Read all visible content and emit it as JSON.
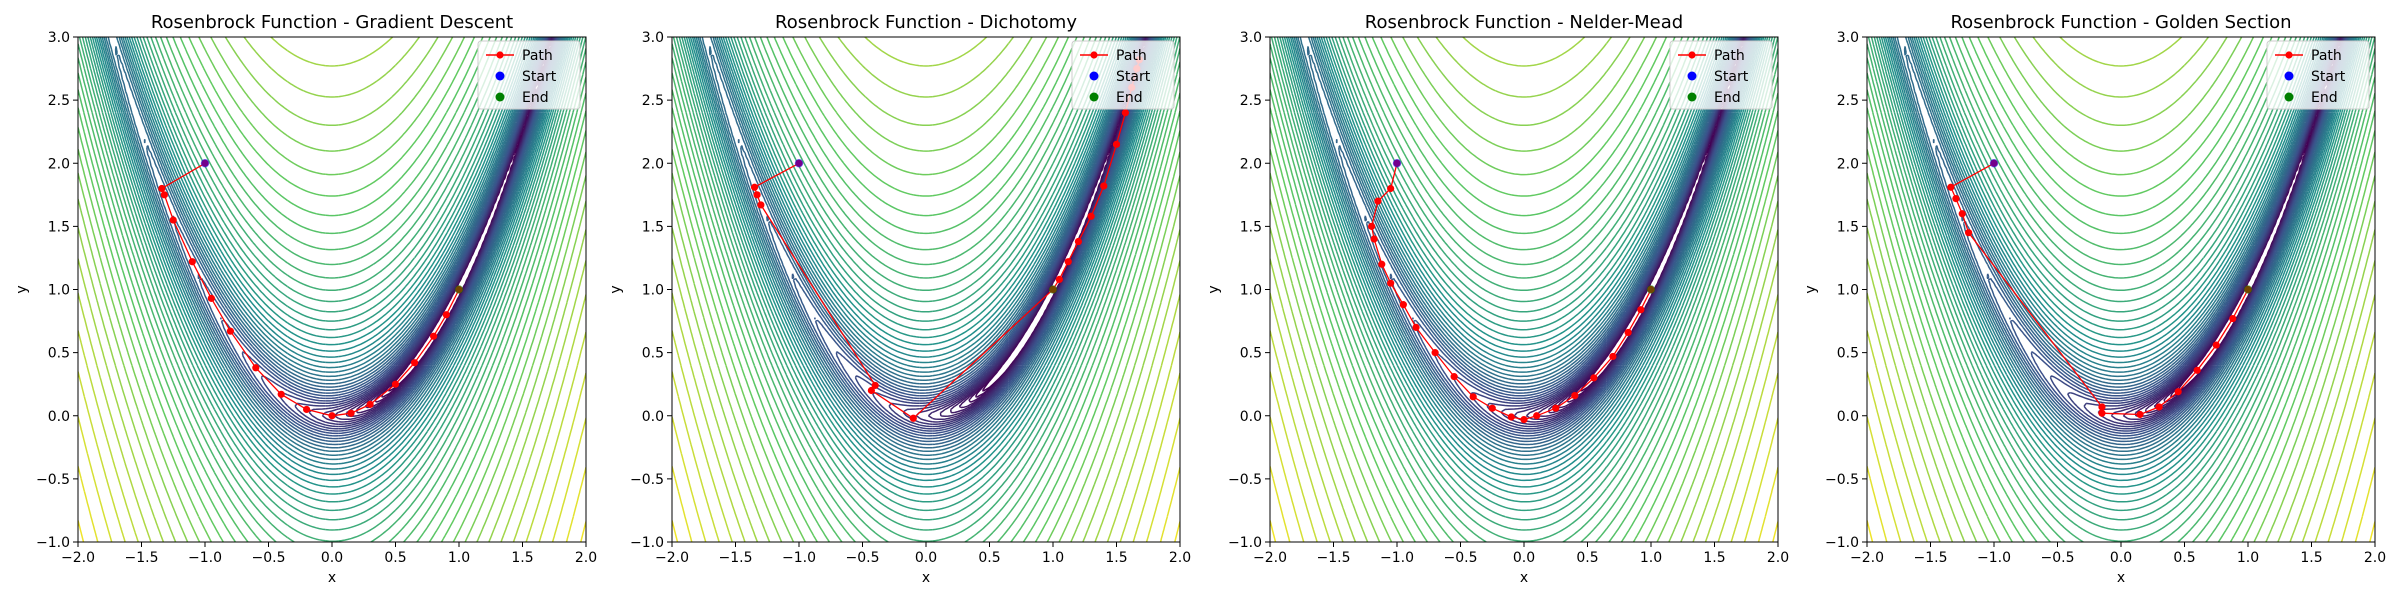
{
  "figure": {
    "xlabel": "x",
    "ylabel": "y",
    "legend": [
      "Path",
      "Start",
      "End"
    ],
    "legend_position": "upper-right",
    "contour_colormap": [
      "#440154",
      "#3b528b",
      "#21918c",
      "#5ec962",
      "#fde725"
    ],
    "path_color": "#ff0000",
    "start_color": "#0000ff",
    "end_color": "#008000"
  },
  "chart_data": [
    {
      "type": "line",
      "title": "Rosenbrock Function - Gradient Descent",
      "xlabel": "x",
      "ylabel": "y",
      "xlim": [
        -2.0,
        2.0
      ],
      "ylim": [
        -1.0,
        3.0
      ],
      "xticks": [
        "−2.0",
        "−1.5",
        "−1.0",
        "−0.5",
        "0.0",
        "0.5",
        "1.0",
        "1.5",
        "2.0"
      ],
      "yticks": [
        "−1.0",
        "−0.5",
        "0.0",
        "0.5",
        "1.0",
        "1.5",
        "2.0",
        "2.5",
        "3.0"
      ],
      "grid": false,
      "series": [
        {
          "name": "Path",
          "x": [
            -1.0,
            -1.34,
            -1.32,
            -1.25,
            -1.1,
            -0.95,
            -0.8,
            -0.6,
            -0.4,
            -0.2,
            0.0,
            0.15,
            0.3,
            0.5,
            0.65,
            0.8,
            0.9,
            1.0
          ],
          "y": [
            2.0,
            1.8,
            1.75,
            1.55,
            1.22,
            0.93,
            0.67,
            0.38,
            0.17,
            0.05,
            0.0,
            0.02,
            0.09,
            0.25,
            0.42,
            0.63,
            0.8,
            1.0
          ]
        },
        {
          "name": "Start",
          "x": [
            -1.0
          ],
          "y": [
            2.0
          ]
        },
        {
          "name": "End",
          "x": [
            1.0
          ],
          "y": [
            1.0
          ]
        }
      ]
    },
    {
      "type": "line",
      "title": "Rosenbrock Function - Dichotomy",
      "xlabel": "x",
      "ylabel": "y",
      "xlim": [
        -2.0,
        2.0
      ],
      "ylim": [
        -1.0,
        3.0
      ],
      "xticks": [
        "−2.0",
        "−1.5",
        "−1.0",
        "−0.5",
        "0.0",
        "0.5",
        "1.0",
        "1.5",
        "2.0"
      ],
      "yticks": [
        "−1.0",
        "−0.5",
        "0.0",
        "0.5",
        "1.0",
        "1.5",
        "2.0",
        "2.5",
        "3.0"
      ],
      "grid": false,
      "series": [
        {
          "name": "Path",
          "x": [
            -1.0,
            -1.35,
            -1.33,
            -1.3,
            -0.4,
            -0.43,
            -0.1,
            1.0,
            1.05,
            1.12,
            1.2,
            1.3,
            1.4,
            1.5,
            1.57,
            1.62,
            1.66,
            1.68
          ],
          "y": [
            2.0,
            1.81,
            1.75,
            1.67,
            0.24,
            0.2,
            -0.02,
            1.0,
            1.08,
            1.22,
            1.38,
            1.58,
            1.82,
            2.15,
            2.4,
            2.6,
            2.75,
            2.82
          ]
        },
        {
          "name": "Start",
          "x": [
            -1.0
          ],
          "y": [
            2.0
          ]
        },
        {
          "name": "End",
          "x": [
            1.0
          ],
          "y": [
            1.0
          ]
        }
      ]
    },
    {
      "type": "line",
      "title": "Rosenbrock Function - Nelder-Mead",
      "xlabel": "x",
      "ylabel": "y",
      "xlim": [
        -2.0,
        2.0
      ],
      "ylim": [
        -1.0,
        3.0
      ],
      "xticks": [
        "−2.0",
        "−1.5",
        "−1.0",
        "−0.5",
        "0.0",
        "0.5",
        "1.0",
        "1.5",
        "2.0"
      ],
      "yticks": [
        "−1.0",
        "−0.5",
        "0.0",
        "0.5",
        "1.0",
        "1.5",
        "2.0",
        "2.5",
        "3.0"
      ],
      "grid": false,
      "series": [
        {
          "name": "Path",
          "x": [
            -1.0,
            -1.05,
            -1.15,
            -1.2,
            -1.18,
            -1.12,
            -1.05,
            -0.95,
            -0.85,
            -0.7,
            -0.55,
            -0.4,
            -0.25,
            -0.1,
            0.0,
            0.1,
            0.25,
            0.4,
            0.55,
            0.7,
            0.82,
            0.92,
            1.0
          ],
          "y": [
            2.0,
            1.8,
            1.7,
            1.5,
            1.4,
            1.2,
            1.05,
            0.88,
            0.7,
            0.5,
            0.31,
            0.15,
            0.06,
            -0.01,
            -0.03,
            0.0,
            0.06,
            0.16,
            0.3,
            0.47,
            0.66,
            0.84,
            1.0
          ]
        },
        {
          "name": "Start",
          "x": [
            -1.0
          ],
          "y": [
            2.0
          ]
        },
        {
          "name": "End",
          "x": [
            1.0
          ],
          "y": [
            1.0
          ]
        }
      ]
    },
    {
      "type": "line",
      "title": "Rosenbrock Function - Golden Section",
      "xlabel": "x",
      "ylabel": "y",
      "xlim": [
        -2.0,
        2.0
      ],
      "ylim": [
        -1.0,
        3.0
      ],
      "xticks": [
        "−2.0",
        "−1.5",
        "−1.0",
        "−0.5",
        "0.0",
        "0.5",
        "1.0",
        "1.5",
        "2.0"
      ],
      "yticks": [
        "−1.0",
        "−0.5",
        "0.0",
        "0.5",
        "1.0",
        "1.5",
        "2.0",
        "2.5",
        "3.0"
      ],
      "grid": false,
      "series": [
        {
          "name": "Path",
          "x": [
            -1.0,
            -1.34,
            -1.3,
            -1.25,
            -1.2,
            -0.15,
            -0.15,
            0.15,
            0.3,
            0.45,
            0.6,
            0.75,
            0.88,
            1.0
          ],
          "y": [
            2.0,
            1.81,
            1.72,
            1.6,
            1.45,
            0.07,
            0.02,
            0.01,
            0.07,
            0.19,
            0.36,
            0.56,
            0.77,
            1.0
          ]
        },
        {
          "name": "Start",
          "x": [
            -1.0
          ],
          "y": [
            2.0
          ]
        },
        {
          "name": "End",
          "x": [
            1.0
          ],
          "y": [
            1.0
          ]
        }
      ]
    }
  ]
}
